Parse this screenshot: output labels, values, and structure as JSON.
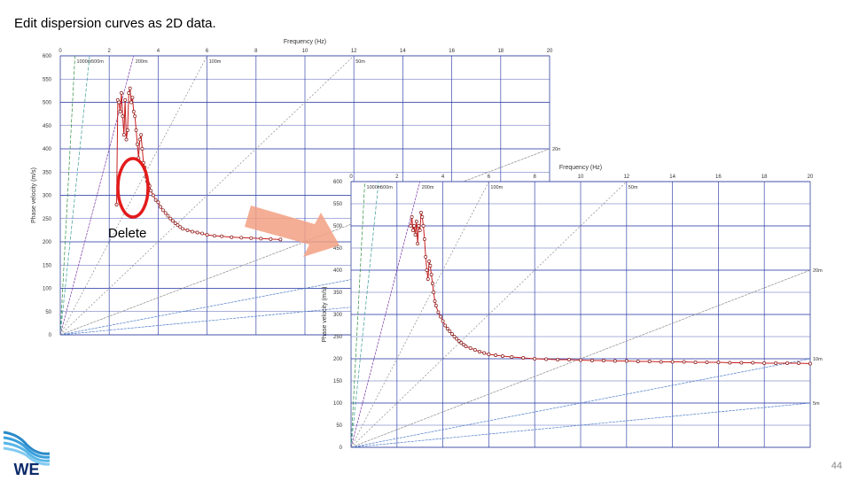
{
  "slide": {
    "title": "Edit dispersion curves as 2D data.",
    "page_number": "44"
  },
  "annotation": {
    "label": "Delete",
    "circle_color": "#e31b1b",
    "arrow_color": "#f2a083"
  },
  "logo": {
    "text": "WE",
    "icon": "wave-logo-icon"
  },
  "colors": {
    "grid": "#2a3aa6",
    "curve": "#c81e1e",
    "marker": "#8a1a1a"
  },
  "chart_data": [
    {
      "type": "scatter",
      "title": "",
      "xlabel": "Frequency (Hz)",
      "ylabel": "Phase velocity (m/s)",
      "xlim": [
        0,
        20
      ],
      "ylim": [
        0,
        600
      ],
      "xticks": [
        "0",
        "2",
        "4",
        "6",
        "8",
        "10",
        "12",
        "14",
        "16",
        "18",
        "20"
      ],
      "yticks": [
        "0",
        "50",
        "100",
        "150",
        "200",
        "250",
        "300",
        "350",
        "400",
        "450",
        "500",
        "550",
        "600"
      ],
      "wavelength_lines": [
        {
          "label": "1000m",
          "wavelength": 1000
        },
        {
          "label": "500m",
          "wavelength": 500
        },
        {
          "label": "200m",
          "wavelength": 200
        },
        {
          "label": "100m",
          "wavelength": 100
        },
        {
          "label": "50m",
          "wavelength": 50
        },
        {
          "label": "20m",
          "wavelength": 20
        },
        {
          "label": "10m",
          "wavelength": 10
        },
        {
          "label": "5m",
          "wavelength": 5
        }
      ],
      "series": [
        {
          "x": [
            2.3,
            2.35,
            2.4,
            2.45,
            2.5,
            2.55,
            2.6,
            2.65,
            2.7,
            2.75,
            2.8,
            2.85,
            2.9,
            2.95,
            3.0,
            3.05,
            3.1,
            3.15,
            3.2,
            3.25,
            3.3,
            3.35,
            3.4,
            3.45,
            3.5,
            3.55,
            3.6,
            3.65,
            3.7,
            3.8,
            3.9,
            4.0,
            4.1,
            4.2,
            4.3,
            4.4,
            4.5,
            4.6,
            4.7,
            4.8,
            4.9,
            5.0,
            5.2,
            5.4,
            5.6,
            5.8,
            6.0,
            6.3,
            6.6,
            7.0,
            7.4,
            7.8,
            8.2,
            8.6,
            9.0
          ],
          "y": [
            280,
            505,
            500,
            480,
            520,
            470,
            430,
            505,
            420,
            440,
            520,
            530,
            500,
            510,
            480,
            470,
            440,
            410,
            380,
            420,
            430,
            400,
            370,
            360,
            340,
            330,
            325,
            320,
            310,
            300,
            290,
            285,
            275,
            268,
            262,
            256,
            250,
            245,
            240,
            236,
            232,
            228,
            225,
            222,
            220,
            218,
            215,
            213,
            212,
            210,
            209,
            208,
            207,
            206,
            205
          ]
        }
      ]
    },
    {
      "type": "scatter",
      "title": "",
      "xlabel": "Frequency (Hz)",
      "ylabel": "Phase velocity (m/s)",
      "xlim": [
        0,
        20
      ],
      "ylim": [
        0,
        600
      ],
      "xticks": [
        "0",
        "2",
        "4",
        "6",
        "8",
        "10",
        "12",
        "14",
        "16",
        "18",
        "20"
      ],
      "yticks": [
        "0",
        "50",
        "100",
        "150",
        "200",
        "250",
        "300",
        "350",
        "400",
        "450",
        "500",
        "550",
        "600"
      ],
      "wavelength_lines": [
        {
          "label": "1000m",
          "wavelength": 1000
        },
        {
          "label": "500m",
          "wavelength": 500
        },
        {
          "label": "200m",
          "wavelength": 200
        },
        {
          "label": "100m",
          "wavelength": 100
        },
        {
          "label": "50m",
          "wavelength": 50
        },
        {
          "label": "20m",
          "wavelength": 20
        },
        {
          "label": "10m",
          "wavelength": 10
        },
        {
          "label": "5m",
          "wavelength": 5
        }
      ],
      "series": [
        {
          "x": [
            2.6,
            2.65,
            2.7,
            2.75,
            2.8,
            2.85,
            2.9,
            2.95,
            3.0,
            3.05,
            3.1,
            3.15,
            3.2,
            3.25,
            3.3,
            3.35,
            3.4,
            3.45,
            3.5,
            3.55,
            3.6,
            3.65,
            3.7,
            3.8,
            3.9,
            4.0,
            4.1,
            4.2,
            4.3,
            4.4,
            4.5,
            4.6,
            4.7,
            4.8,
            4.9,
            5.0,
            5.2,
            5.4,
            5.6,
            5.8,
            6.0,
            6.3,
            6.6,
            7.0,
            7.5,
            8.0,
            8.5,
            9.0,
            9.5,
            10.0,
            10.5,
            11.0,
            11.5,
            12.0,
            12.5,
            13.0,
            13.5,
            14.0,
            14.5,
            15.0,
            15.5,
            16.0,
            16.5,
            17.0,
            17.5,
            18.0,
            18.5,
            19.0,
            19.5,
            20.0
          ],
          "y": [
            500,
            520,
            490,
            500,
            480,
            510,
            460,
            500,
            490,
            530,
            520,
            500,
            470,
            430,
            400,
            380,
            420,
            410,
            390,
            370,
            350,
            330,
            320,
            305,
            295,
            285,
            275,
            268,
            262,
            256,
            250,
            245,
            240,
            236,
            232,
            228,
            224,
            220,
            216,
            213,
            210,
            208,
            206,
            204,
            202,
            200,
            199,
            198,
            198,
            197,
            196,
            196,
            195,
            195,
            194,
            194,
            193,
            193,
            193,
            192,
            192,
            192,
            191,
            191,
            191,
            190,
            190,
            190,
            190,
            189
          ]
        }
      ]
    }
  ]
}
